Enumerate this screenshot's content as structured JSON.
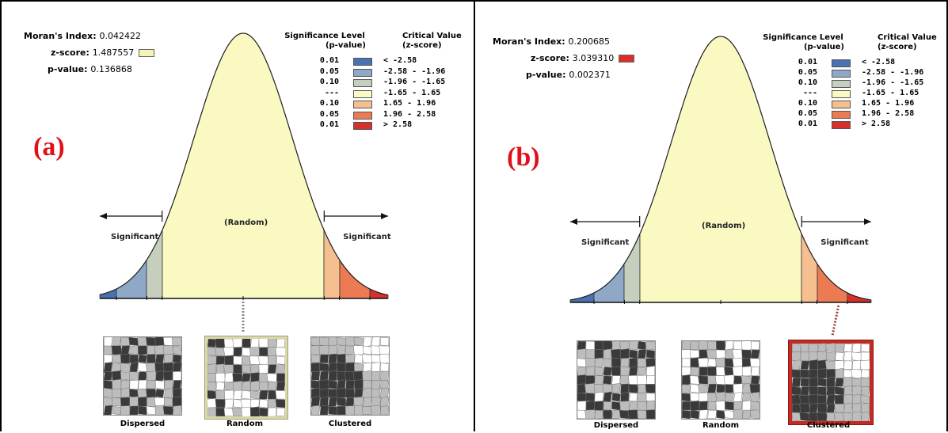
{
  "panels": [
    {
      "label": "(a)",
      "stats": {
        "moran_key": "Moran's Index:",
        "moran_value": "0.042422",
        "z_key": "z-score:",
        "z_value": "1.487557",
        "z_color": "#f6f3b7",
        "p_key": "p-value:",
        "p_value": "0.136868"
      },
      "thumb_labels": [
        "Dispersed",
        "Random",
        "Clustered"
      ],
      "highlight": "Random"
    },
    {
      "label": "(b)",
      "stats": {
        "moran_key": "Moran's Index:",
        "moran_value": "0.200685",
        "z_key": "z-score:",
        "z_value": "3.039310",
        "z_color": "#d7302b",
        "p_key": "p-value:",
        "p_value": "0.002371"
      },
      "thumb_labels": [
        "Dispersed",
        "Random",
        "Clustered"
      ],
      "highlight": "Clustered"
    }
  ],
  "legend": {
    "header_sig_line1": "Significance Level",
    "header_sig_line2": "(p-value)",
    "header_crit_line1": "Critical Value",
    "header_crit_line2": "(z-score)",
    "rows": [
      {
        "p": "0.01",
        "z": "< -2.58",
        "color": "#4a72b0"
      },
      {
        "p": "0.05",
        "z": "-2.58 - -1.96",
        "color": "#8fa8c8"
      },
      {
        "p": "0.10",
        "z": "-1.96 - -1.65",
        "color": "#c6cfbe"
      },
      {
        "p": "---",
        "z": "-1.65 - 1.65",
        "color": "#fbf9c2"
      },
      {
        "p": "0.10",
        "z": "1.65 - 1.96",
        "color": "#f6bf8f"
      },
      {
        "p": "0.05",
        "z": "1.96 - 2.58",
        "color": "#ec7a52"
      },
      {
        "p": "0.01",
        "z": "> 2.58",
        "color": "#d7302b"
      }
    ]
  },
  "curve": {
    "random_label": "(Random)",
    "sig_left": "Significant",
    "sig_right": "Significant"
  }
}
